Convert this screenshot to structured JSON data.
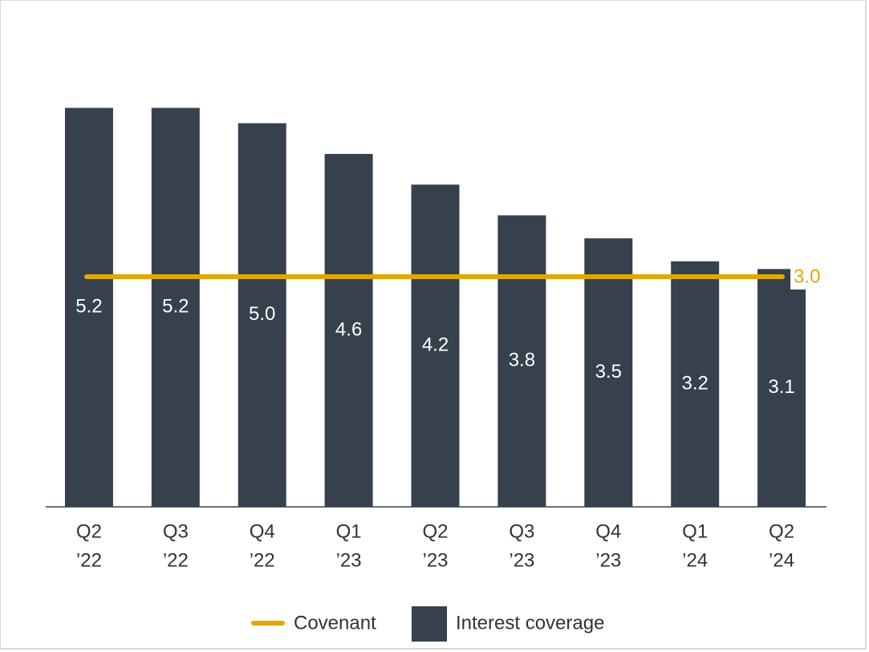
{
  "chart_data": {
    "type": "bar",
    "categories": [
      [
        "Q2",
        "’22"
      ],
      [
        "Q3",
        "’22"
      ],
      [
        "Q4",
        "’22"
      ],
      [
        "Q1",
        "’23"
      ],
      [
        "Q2",
        "’23"
      ],
      [
        "Q3",
        "’23"
      ],
      [
        "Q4",
        "’23"
      ],
      [
        "Q1",
        "’24"
      ],
      [
        "Q2",
        "’24"
      ]
    ],
    "series": [
      {
        "name": "Interest coverage",
        "color": "#36414d",
        "values": [
          5.2,
          5.2,
          5.0,
          4.6,
          4.2,
          3.8,
          3.5,
          3.2,
          3.1
        ],
        "value_labels": [
          "5.2",
          "5.2",
          "5.0",
          "4.6",
          "4.2",
          "3.8",
          "3.5",
          "3.2",
          "3.1"
        ]
      }
    ],
    "covenant": {
      "name": "Covenant",
      "value": 3.0,
      "label": "3.0",
      "color": "#e0a800"
    },
    "ylim": [
      0,
      6
    ]
  }
}
